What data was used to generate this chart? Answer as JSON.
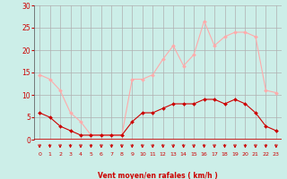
{
  "x": [
    0,
    1,
    2,
    3,
    4,
    5,
    6,
    7,
    8,
    9,
    10,
    11,
    12,
    13,
    14,
    15,
    16,
    17,
    18,
    19,
    20,
    21,
    22,
    23
  ],
  "wind_avg": [
    6,
    5,
    3,
    2,
    1,
    1,
    1,
    1,
    1,
    4,
    6,
    6,
    7,
    8,
    8,
    8,
    9,
    9,
    8,
    9,
    8,
    6,
    3,
    2
  ],
  "wind_gust": [
    14.5,
    13.5,
    11,
    6,
    4,
    1,
    1,
    1,
    1,
    13.5,
    13.5,
    14.5,
    18,
    21,
    16.5,
    19,
    26.5,
    21,
    23,
    24,
    24,
    23,
    11,
    10.5
  ],
  "bg_color": "#cceee8",
  "grid_color": "#b0b0b0",
  "line_avg_color": "#cc0000",
  "line_gust_color": "#ffaaaa",
  "xlabel": "Vent moyen/en rafales ( km/h )",
  "xlabel_color": "#cc0000",
  "tick_color": "#cc0000",
  "arrow_color": "#cc0000",
  "ylim": [
    0,
    30
  ],
  "yticks": [
    0,
    5,
    10,
    15,
    20,
    25,
    30
  ],
  "xticks": [
    0,
    1,
    2,
    3,
    4,
    5,
    6,
    7,
    8,
    9,
    10,
    11,
    12,
    13,
    14,
    15,
    16,
    17,
    18,
    19,
    20,
    21,
    22,
    23
  ]
}
